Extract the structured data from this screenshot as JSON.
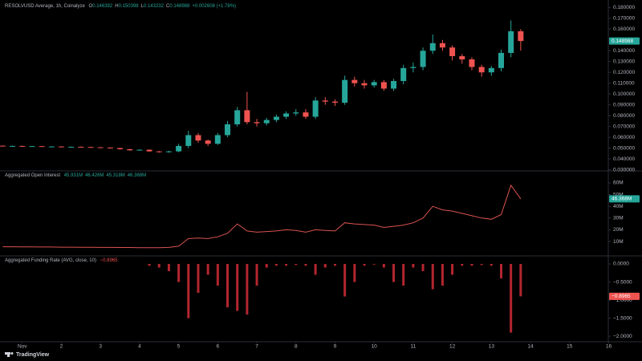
{
  "chart_data": {
    "type": "panes",
    "x": [
      0.5,
      0.75,
      1,
      1.25,
      1.5,
      1.75,
      2,
      2.25,
      2.5,
      2.75,
      3,
      3.25,
      3.5,
      3.75,
      4,
      4.25,
      4.5,
      4.75,
      5,
      5.25,
      5.5,
      5.75,
      6,
      6.25,
      6.5,
      6.75,
      7,
      7.25,
      7.5,
      7.75,
      8,
      8.25,
      8.5,
      8.75,
      9,
      9.25,
      9.5,
      9.75,
      10,
      10.25,
      10.5,
      10.75,
      11,
      11.25,
      11.5,
      11.75,
      12,
      12.25,
      12.5,
      12.75,
      13,
      13.25,
      13.5,
      13.75
    ],
    "xlim": [
      0.43,
      15.97
    ],
    "xticks": [
      {
        "value": 1,
        "label": "Nov"
      },
      2,
      3,
      4,
      5,
      6,
      7,
      8,
      9,
      10,
      11,
      12,
      13,
      14,
      15,
      16
    ],
    "footer": "TradingView",
    "panes": [
      {
        "type": "candlestick",
        "title": "RESOLVUSD Average, 1h, Coinalyze",
        "ohlc_legend": [
          {
            "label": "O",
            "value": 0.146392
          },
          {
            "label": "H",
            "value": 0.150398
          },
          {
            "label": "L",
            "value": 0.143232
          },
          {
            "label": "C",
            "value": 0.148988
          }
        ],
        "change": "+0.002608 (+1.78%)",
        "last_label": "0.148988",
        "up_color": "#26a69a",
        "down_color": "#ef5350",
        "open": [
          0.0522,
          0.052,
          0.052,
          0.0518,
          0.0518,
          0.0515,
          0.0515,
          0.0512,
          0.0512,
          0.051,
          0.0508,
          0.0505,
          0.05,
          0.049,
          0.048,
          0.0485,
          0.047,
          0.0465,
          0.047,
          0.052,
          0.062,
          0.057,
          0.054,
          0.062,
          0.072,
          0.085,
          0.074,
          0.073,
          0.076,
          0.079,
          0.082,
          0.083,
          0.079,
          0.094,
          0.093,
          0.092,
          0.113,
          0.11,
          0.108,
          0.111,
          0.105,
          0.112,
          0.124,
          0.125,
          0.14,
          0.147,
          0.143,
          0.135,
          0.132,
          0.125,
          0.12,
          0.124,
          0.138,
          0.158
        ],
        "high": [
          0.0525,
          0.0524,
          0.0523,
          0.0521,
          0.052,
          0.0518,
          0.0518,
          0.0515,
          0.0515,
          0.0513,
          0.051,
          0.0508,
          0.0503,
          0.0493,
          0.0488,
          0.0488,
          0.0473,
          0.0475,
          0.054,
          0.066,
          0.064,
          0.058,
          0.064,
          0.075,
          0.088,
          0.102,
          0.077,
          0.078,
          0.081,
          0.084,
          0.086,
          0.086,
          0.097,
          0.097,
          0.095,
          0.117,
          0.116,
          0.113,
          0.113,
          0.113,
          0.114,
          0.127,
          0.129,
          0.143,
          0.155,
          0.15,
          0.145,
          0.137,
          0.134,
          0.127,
          0.126,
          0.141,
          0.168,
          0.16
        ],
        "low": [
          0.0516,
          0.0516,
          0.0515,
          0.0514,
          0.0512,
          0.0511,
          0.0509,
          0.0508,
          0.0506,
          0.0504,
          0.0501,
          0.0496,
          0.0486,
          0.0476,
          0.0477,
          0.0466,
          0.0458,
          0.0458,
          0.0462,
          0.05,
          0.055,
          0.052,
          0.053,
          0.06,
          0.07,
          0.072,
          0.07,
          0.071,
          0.074,
          0.077,
          0.08,
          0.077,
          0.077,
          0.09,
          0.089,
          0.09,
          0.107,
          0.105,
          0.106,
          0.103,
          0.103,
          0.109,
          0.12,
          0.122,
          0.137,
          0.14,
          0.131,
          0.128,
          0.122,
          0.116,
          0.117,
          0.121,
          0.134,
          0.14
        ],
        "close": [
          0.052,
          0.052,
          0.0518,
          0.0518,
          0.0515,
          0.0515,
          0.0512,
          0.0512,
          0.051,
          0.0508,
          0.0505,
          0.05,
          0.049,
          0.048,
          0.0485,
          0.047,
          0.0465,
          0.047,
          0.052,
          0.062,
          0.057,
          0.054,
          0.062,
          0.072,
          0.085,
          0.074,
          0.073,
          0.076,
          0.079,
          0.082,
          0.083,
          0.079,
          0.094,
          0.093,
          0.092,
          0.113,
          0.11,
          0.108,
          0.111,
          0.105,
          0.112,
          0.124,
          0.125,
          0.14,
          0.147,
          0.143,
          0.135,
          0.132,
          0.125,
          0.12,
          0.124,
          0.138,
          0.158,
          0.148988
        ],
        "ylim": [
          0.0297,
          0.1869
        ],
        "yticks": [
          {
            "value": 0.03,
            "label": "0.030000"
          },
          {
            "value": 0.04,
            "label": "0.040000"
          },
          {
            "value": 0.05,
            "label": "0.050000"
          },
          {
            "value": 0.06,
            "label": "0.060000"
          },
          {
            "value": 0.07,
            "label": "0.070000"
          },
          {
            "value": 0.08,
            "label": "0.080000"
          },
          {
            "value": 0.09,
            "label": "0.090000"
          },
          {
            "value": 0.1,
            "label": "0.100000"
          },
          {
            "value": 0.11,
            "label": "0.110000"
          },
          {
            "value": 0.12,
            "label": "0.120000"
          },
          {
            "value": 0.13,
            "label": "0.130000"
          },
          {
            "value": 0.14,
            "label": "0.140000"
          },
          {
            "value": 0.16,
            "label": "0.160000"
          },
          {
            "value": 0.17,
            "label": "0.170000"
          },
          {
            "value": 0.18,
            "label": "0.180000"
          }
        ]
      },
      {
        "type": "line",
        "title": "Aggregated Open Interest",
        "legend_values": [
          "45.931M",
          "46.426M",
          "45.318M",
          "46.368M"
        ],
        "last_label": "46.368M",
        "color": "#d9534f",
        "tag_color": "#26a69a",
        "values": [
          5.5,
          5.5,
          5.4,
          5.4,
          5.3,
          5.3,
          5.2,
          5.2,
          5.1,
          5.1,
          5.0,
          5.0,
          4.9,
          4.9,
          4.8,
          4.8,
          4.8,
          5.0,
          6.0,
          12.5,
          13,
          12.5,
          14,
          17,
          25,
          19,
          18,
          18.5,
          19,
          20,
          19.5,
          18,
          20,
          19.5,
          19,
          26,
          25,
          24.5,
          24,
          22,
          23,
          24,
          26,
          30,
          40,
          37,
          36,
          34,
          32,
          30,
          29,
          33,
          58,
          46.368
        ],
        "ylim": [
          -1.6,
          69.6
        ],
        "yticks": [
          {
            "value": 10,
            "label": "10M"
          },
          {
            "value": 20,
            "label": "20M"
          },
          {
            "value": 30,
            "label": "30M"
          },
          {
            "value": 40,
            "label": "40M"
          },
          {
            "value": 50,
            "label": "50M"
          },
          {
            "value": 60,
            "label": "60M"
          }
        ]
      },
      {
        "type": "bar",
        "title": "Aggregated Funding Rate (AVG, close, 10)",
        "legend_value": "−0.8965",
        "last_label": "−0.8965",
        "color": "#b3262f",
        "tag_color": "#ef5350",
        "values": [
          0,
          0,
          0,
          0,
          0,
          0,
          0,
          0,
          0,
          0,
          0,
          0,
          0,
          0,
          0,
          -0.05,
          -0.1,
          -0.2,
          -0.5,
          -1.5,
          -0.8,
          -0.3,
          -0.6,
          -1.2,
          -1.3,
          -1.4,
          -0.6,
          -0.1,
          -0.05,
          -0.05,
          -0.03,
          -0.05,
          -0.3,
          -0.1,
          -0.05,
          -0.9,
          -0.5,
          -0.05,
          -0.02,
          -0.1,
          -0.5,
          -0.6,
          -0.1,
          -0.2,
          -0.7,
          -0.6,
          -0.3,
          -0.05,
          -0.05,
          -0.03,
          -0.05,
          -0.4,
          -1.9,
          -0.8965
        ],
        "ylim": [
          -2.13,
          0.2
        ],
        "yticks": [
          {
            "value": -2,
            "label": "−2.0000"
          },
          {
            "value": -1.5,
            "label": "−1.5000"
          },
          {
            "value": -1,
            "label": "−1.0000"
          },
          {
            "value": -0.5,
            "label": "−0.5000"
          },
          {
            "value": 0,
            "label": "0.0000"
          }
        ]
      }
    ]
  }
}
